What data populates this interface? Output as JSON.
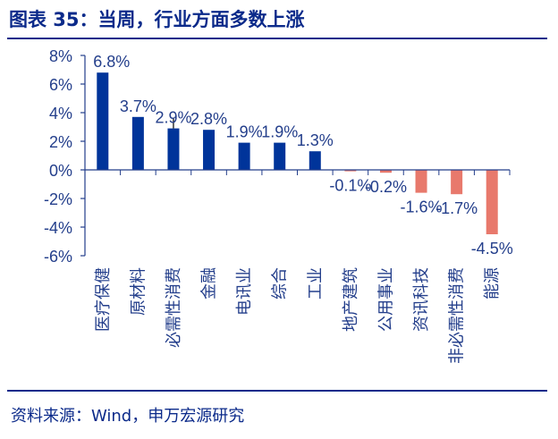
{
  "title": "图表 35：当周，行业方面多数上涨",
  "source": "资料来源：Wind，申万宏源研究",
  "colors": {
    "positive": "#00349a",
    "negative": "#e8796c",
    "axis": "#233e8b",
    "title": "#0b2a8a"
  },
  "chart_data": {
    "type": "bar",
    "categories": [
      "医疗保健",
      "原材料",
      "必需性消费",
      "金融",
      "电讯业",
      "综合",
      "工业",
      "地产建筑",
      "公用事业",
      "资讯科技",
      "非必需性消费",
      "能源"
    ],
    "values": [
      6.8,
      3.7,
      2.9,
      2.8,
      1.9,
      1.9,
      1.3,
      -0.1,
      -0.2,
      -1.6,
      -1.7,
      -4.5
    ],
    "data_labels": [
      "6.8%",
      "3.7%",
      "2.9%",
      "2.8%",
      "1.9%",
      "1.9%",
      "1.3%",
      "-0.1%",
      "-0.2%",
      "-1.6%",
      "-1.7%",
      "-4.5%"
    ],
    "y_ticks": [
      8,
      6,
      4,
      2,
      0,
      -2,
      -4,
      -6
    ],
    "y_tick_labels": [
      "8%",
      "6%",
      "4%",
      "2%",
      "0%",
      "-2%",
      "-4%",
      "-6%"
    ],
    "ylim": [
      -6,
      8
    ],
    "xlabel": "",
    "ylabel": "",
    "grid": false,
    "legend": "none"
  }
}
